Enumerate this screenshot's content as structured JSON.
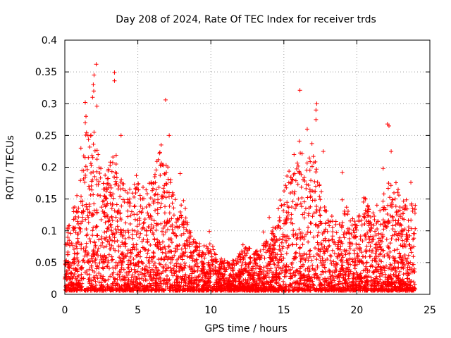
{
  "chart_data": {
    "type": "scatter",
    "title": "Day 208 of 2024, Rate Of TEC Index for receiver trds",
    "xlabel": "GPS time / hours",
    "ylabel": "ROTI / TECUs",
    "xlim": [
      0,
      25
    ],
    "ylim": [
      0,
      0.4
    ],
    "xticks": [
      0,
      5,
      10,
      15,
      20,
      25
    ],
    "yticks": [
      0,
      0.05,
      0.1,
      0.15,
      0.2,
      0.25,
      0.3,
      0.35,
      0.4
    ],
    "xtick_labels": [
      "0",
      "5",
      "10",
      "15",
      "20",
      "25"
    ],
    "ytick_labels": [
      "0",
      "0.05",
      "0.1",
      "0.15",
      "0.2",
      "0.25",
      "0.3",
      "0.35",
      "0.4"
    ],
    "grid": true,
    "marker": "plus",
    "color": "#ff0000",
    "envelope": [
      [
        0.0,
        0.1
      ],
      [
        0.5,
        0.13
      ],
      [
        1.0,
        0.16
      ],
      [
        1.5,
        0.26
      ],
      [
        2.0,
        0.26
      ],
      [
        2.5,
        0.2
      ],
      [
        3.0,
        0.2
      ],
      [
        3.5,
        0.22
      ],
      [
        4.0,
        0.17
      ],
      [
        4.5,
        0.16
      ],
      [
        5.0,
        0.18
      ],
      [
        5.5,
        0.16
      ],
      [
        6.0,
        0.18
      ],
      [
        6.5,
        0.22
      ],
      [
        7.0,
        0.2
      ],
      [
        7.5,
        0.16
      ],
      [
        8.0,
        0.16
      ],
      [
        8.5,
        0.1
      ],
      [
        9.0,
        0.08
      ],
      [
        9.5,
        0.07
      ],
      [
        10.0,
        0.08
      ],
      [
        10.5,
        0.05
      ],
      [
        11.0,
        0.05
      ],
      [
        11.5,
        0.05
      ],
      [
        12.0,
        0.06
      ],
      [
        12.5,
        0.07
      ],
      [
        13.0,
        0.06
      ],
      [
        13.5,
        0.07
      ],
      [
        14.0,
        0.09
      ],
      [
        14.5,
        0.12
      ],
      [
        15.0,
        0.17
      ],
      [
        15.5,
        0.2
      ],
      [
        16.0,
        0.24
      ],
      [
        16.5,
        0.2
      ],
      [
        17.0,
        0.24
      ],
      [
        17.5,
        0.16
      ],
      [
        18.0,
        0.13
      ],
      [
        18.5,
        0.11
      ],
      [
        19.0,
        0.15
      ],
      [
        19.5,
        0.12
      ],
      [
        20.0,
        0.11
      ],
      [
        20.5,
        0.15
      ],
      [
        21.0,
        0.12
      ],
      [
        21.5,
        0.14
      ],
      [
        22.0,
        0.16
      ],
      [
        22.5,
        0.2
      ],
      [
        23.0,
        0.14
      ],
      [
        23.5,
        0.15
      ],
      [
        24.0,
        0.14
      ]
    ],
    "outliers": [
      [
        2.15,
        0.362
      ],
      [
        2.0,
        0.345
      ],
      [
        3.4,
        0.349
      ],
      [
        3.4,
        0.336
      ],
      [
        1.95,
        0.33
      ],
      [
        1.98,
        0.32
      ],
      [
        1.9,
        0.31
      ],
      [
        2.2,
        0.296
      ],
      [
        1.4,
        0.302
      ],
      [
        6.9,
        0.306
      ],
      [
        16.1,
        0.321
      ],
      [
        17.25,
        0.3
      ],
      [
        17.2,
        0.29
      ],
      [
        17.2,
        0.275
      ],
      [
        22.1,
        0.268
      ],
      [
        22.2,
        0.265
      ],
      [
        1.45,
        0.28
      ],
      [
        1.4,
        0.27
      ],
      [
        2.0,
        0.255
      ],
      [
        3.85,
        0.25
      ],
      [
        7.15,
        0.25
      ],
      [
        1.1,
        0.23
      ],
      [
        6.6,
        0.235
      ],
      [
        22.35,
        0.225
      ],
      [
        15.7,
        0.22
      ],
      [
        7.9,
        0.19
      ],
      [
        19.0,
        0.192
      ],
      [
        21.8,
        0.198
      ],
      [
        4.9,
        0.187
      ],
      [
        16.6,
        0.26
      ],
      [
        17.7,
        0.225
      ],
      [
        9.9,
        0.099
      ],
      [
        12.2,
        0.078
      ],
      [
        14.0,
        0.121
      ],
      [
        13.6,
        0.098
      ],
      [
        23.7,
        0.176
      ],
      [
        20.6,
        0.15
      ],
      [
        24.0,
        0.14
      ]
    ]
  }
}
